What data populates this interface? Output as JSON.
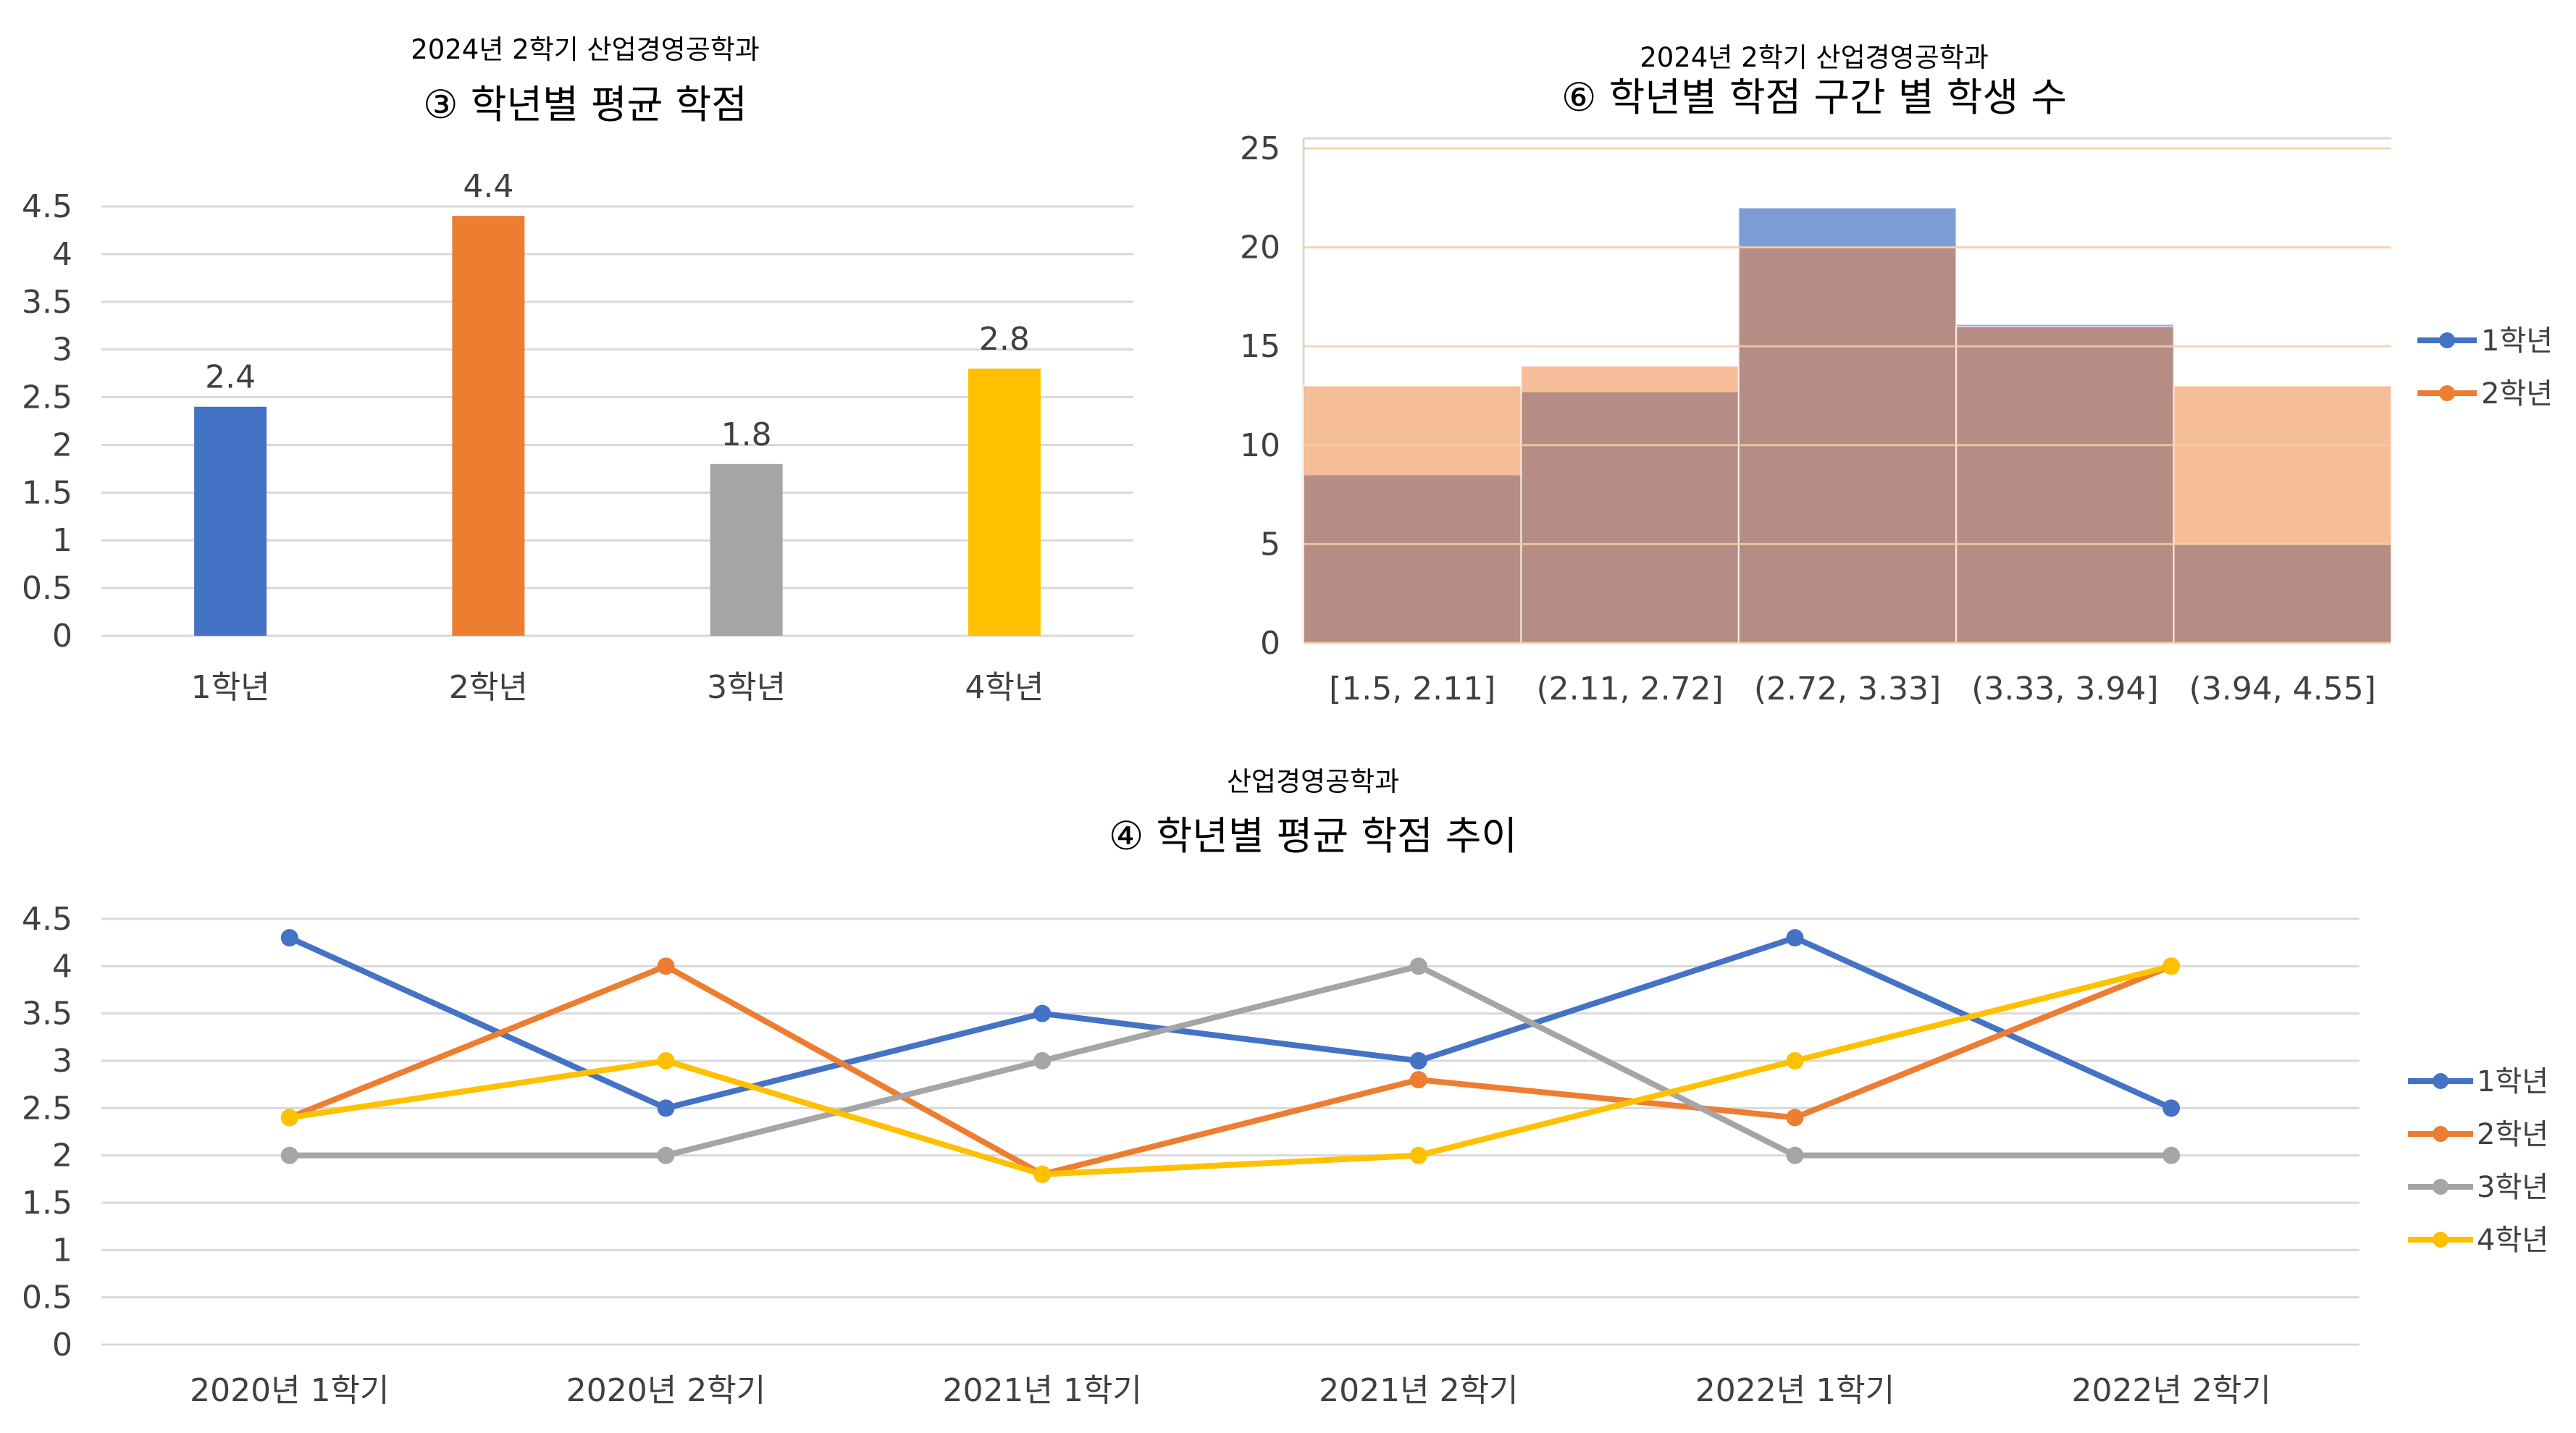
{
  "chart_data": [
    {
      "type": "bar",
      "subtitle": "2024년 2학기 산업경영공학과",
      "title": "③ 학년별 평균 학점",
      "categories": [
        "1학년",
        "2학년",
        "3학년",
        "4학년"
      ],
      "values": [
        2.4,
        4.4,
        1.8,
        2.8
      ],
      "data_labels": [
        "2.4",
        "4.4",
        "1.8",
        "2.8"
      ],
      "colors": [
        "#4472C4",
        "#ED7D31",
        "#A5A5A5",
        "#FFC000"
      ],
      "ylim": [
        0,
        4.5
      ],
      "y_ticks": [
        "0",
        "0.5",
        "1",
        "1.5",
        "2",
        "2.5",
        "3",
        "3.5",
        "4",
        "4.5"
      ],
      "grid": true,
      "legend": "none"
    },
    {
      "type": "bar",
      "subtitle": "2024년 2학기 산업경영공학과",
      "title": "⑥ 학년별 학점 구간 별 학생 수",
      "categories": [
        "[1.5, 2.11]",
        "(2.11, 2.72]",
        "(2.72, 3.33]",
        "(3.33, 3.94]",
        "(3.94, 4.55]"
      ],
      "series": [
        {
          "name": "1학년",
          "values": [
            8.5,
            12.7,
            22,
            16.1,
            5
          ],
          "color": "#4472C4"
        },
        {
          "name": "2학년",
          "values": [
            13,
            14,
            20,
            16,
            13
          ],
          "color": "#ED7D31"
        }
      ],
      "overlap": "full",
      "ylim": [
        0,
        25
      ],
      "y_ticks": [
        "0",
        "5",
        "10",
        "15",
        "20",
        "25"
      ],
      "grid": true,
      "legend": "right"
    },
    {
      "type": "line",
      "subtitle": "산업경영공학과",
      "title": "④ 학년별 평균 학점 추이",
      "categories": [
        "2020년 1학기",
        "2020년 2학기",
        "2021년 1학기",
        "2021년 2학기",
        "2022년 1학기",
        "2022년 2학기"
      ],
      "series": [
        {
          "name": "1학년",
          "values": [
            4.3,
            2.5,
            3.5,
            3.0,
            4.3,
            2.5
          ],
          "color": "#4472C4"
        },
        {
          "name": "2학년",
          "values": [
            2.4,
            4.0,
            1.8,
            2.8,
            2.4,
            4.0
          ],
          "color": "#ED7D31"
        },
        {
          "name": "3학년",
          "values": [
            2.0,
            2.0,
            3.0,
            4.0,
            2.0,
            2.0
          ],
          "color": "#A5A5A5"
        },
        {
          "name": "4학년",
          "values": [
            2.4,
            3.0,
            1.8,
            2.0,
            3.0,
            4.0
          ],
          "color": "#FFC000"
        }
      ],
      "ylim": [
        0,
        4.5
      ],
      "y_ticks": [
        "0",
        "0.5",
        "1",
        "1.5",
        "2",
        "2.5",
        "3",
        "3.5",
        "4",
        "4.5"
      ],
      "grid": true,
      "legend": "right"
    }
  ]
}
